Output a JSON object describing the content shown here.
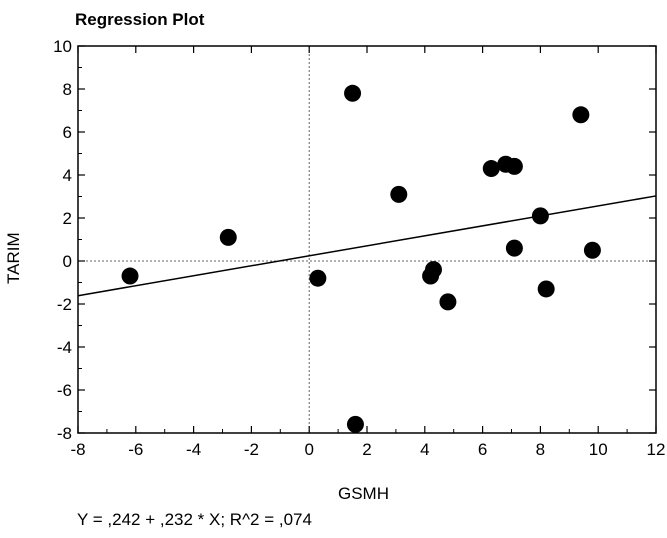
{
  "chart_data": {
    "type": "scatter",
    "title": "Regression Plot",
    "xlabel": "GSMH",
    "ylabel": "TARIM",
    "xlim": [
      -8,
      12
    ],
    "ylim": [
      -8,
      10
    ],
    "x_ticks": [
      -8,
      -6,
      -4,
      -2,
      0,
      2,
      4,
      6,
      8,
      10,
      12
    ],
    "y_ticks": [
      -8,
      -6,
      -4,
      -2,
      0,
      2,
      4,
      6,
      8,
      10
    ],
    "grid": false,
    "zero_lines": true,
    "points": [
      {
        "x": -6.2,
        "y": -0.7
      },
      {
        "x": -2.8,
        "y": 1.1
      },
      {
        "x": 0.3,
        "y": -0.8
      },
      {
        "x": 1.5,
        "y": 7.8
      },
      {
        "x": 1.6,
        "y": -7.6
      },
      {
        "x": 3.1,
        "y": 3.1
      },
      {
        "x": 4.2,
        "y": -0.7
      },
      {
        "x": 4.3,
        "y": -0.4
      },
      {
        "x": 4.8,
        "y": -1.9
      },
      {
        "x": 6.3,
        "y": 4.3
      },
      {
        "x": 6.8,
        "y": 4.5
      },
      {
        "x": 7.1,
        "y": 4.4
      },
      {
        "x": 7.1,
        "y": 0.6
      },
      {
        "x": 8.0,
        "y": 2.1
      },
      {
        "x": 8.2,
        "y": -1.3
      },
      {
        "x": 9.4,
        "y": 6.8
      },
      {
        "x": 9.8,
        "y": 0.5
      }
    ],
    "regression": {
      "intercept": 0.242,
      "slope": 0.232,
      "r2": 0.074
    },
    "equation_text": "Y = ,242 + ,232 * X; R^2 = ,074",
    "colors": {
      "points": "#000000",
      "line": "#000000",
      "background": "#ffffff"
    }
  }
}
